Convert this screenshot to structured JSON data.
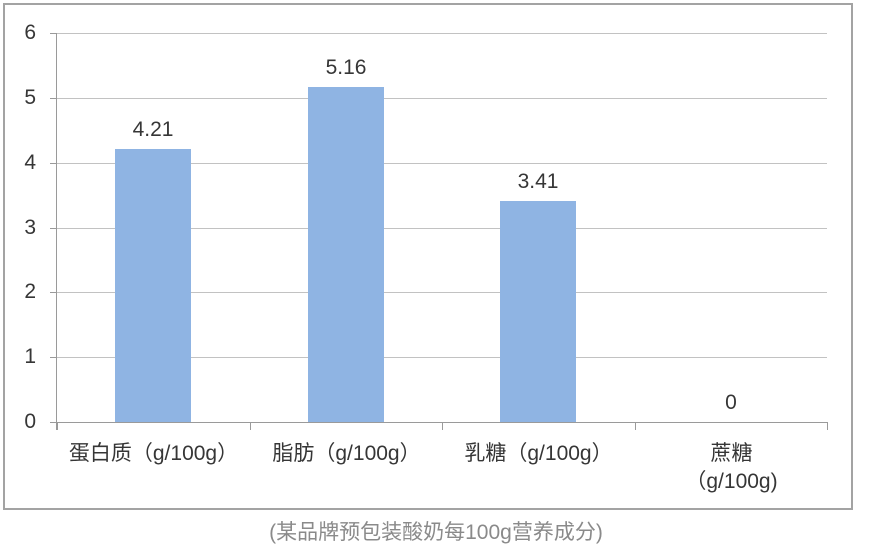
{
  "chart_data": {
    "type": "bar",
    "categories": [
      "蛋白质（g/100g）",
      "脂肪（g/100g）",
      "乳糖（g/100g）",
      "蔗糖\n（g/100g)"
    ],
    "values": [
      4.21,
      5.16,
      3.41,
      0
    ],
    "data_labels": [
      "4.21",
      "5.16",
      "3.41",
      "0"
    ],
    "title": "",
    "xlabel": "",
    "ylabel": "",
    "ylim": [
      0,
      6
    ],
    "yticks": [
      "0",
      "1",
      "2",
      "3",
      "4",
      "5",
      "6"
    ],
    "grid": true,
    "legend": "none",
    "caption": "(某品牌预包装酸奶每100g营养成分)",
    "colors": {
      "bar_fill": "#8FB4E3",
      "gridline": "#C2C2C2",
      "axis": "#9A9A9A",
      "label_text": "#363636",
      "caption_text": "#8A8A8A",
      "frame_border": "#A3A3A3"
    }
  }
}
